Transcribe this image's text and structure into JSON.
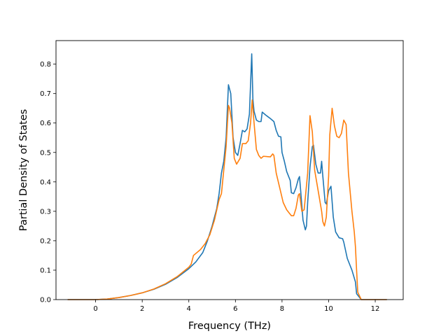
{
  "chart_data": {
    "type": "line",
    "title": "",
    "xlabel": "Frequency (THz)",
    "ylabel": "Partial Density of States",
    "xlim": [
      -1.7,
      13.2
    ],
    "ylim": [
      0.0,
      0.88
    ],
    "xticks": [
      0,
      2,
      4,
      6,
      8,
      10,
      12
    ],
    "yticks": [
      0.0,
      0.1,
      0.2,
      0.3,
      0.4,
      0.5,
      0.6,
      0.7,
      0.8
    ],
    "grid": false,
    "legend": "none",
    "series": [
      {
        "color": "#1f77b4",
        "points": [
          [
            -1.2,
            0.0
          ],
          [
            0.0,
            0.0
          ],
          [
            0.5,
            0.002
          ],
          [
            1.0,
            0.007
          ],
          [
            1.5,
            0.014
          ],
          [
            2.0,
            0.023
          ],
          [
            2.5,
            0.035
          ],
          [
            3.0,
            0.052
          ],
          [
            3.5,
            0.075
          ],
          [
            4.0,
            0.105
          ],
          [
            4.3,
            0.128
          ],
          [
            4.6,
            0.16
          ],
          [
            4.8,
            0.2
          ],
          [
            5.0,
            0.25
          ],
          [
            5.2,
            0.31
          ],
          [
            5.3,
            0.36
          ],
          [
            5.4,
            0.43
          ],
          [
            5.5,
            0.47
          ],
          [
            5.6,
            0.55
          ],
          [
            5.7,
            0.73
          ],
          [
            5.8,
            0.7
          ],
          [
            5.9,
            0.55
          ],
          [
            6.0,
            0.5
          ],
          [
            6.1,
            0.49
          ],
          [
            6.2,
            0.53
          ],
          [
            6.3,
            0.575
          ],
          [
            6.4,
            0.57
          ],
          [
            6.5,
            0.58
          ],
          [
            6.6,
            0.63
          ],
          [
            6.7,
            0.835
          ],
          [
            6.75,
            0.68
          ],
          [
            6.8,
            0.64
          ],
          [
            6.9,
            0.61
          ],
          [
            7.0,
            0.605
          ],
          [
            7.1,
            0.605
          ],
          [
            7.15,
            0.637
          ],
          [
            7.3,
            0.627
          ],
          [
            7.5,
            0.615
          ],
          [
            7.65,
            0.605
          ],
          [
            7.75,
            0.575
          ],
          [
            7.85,
            0.555
          ],
          [
            7.95,
            0.553
          ],
          [
            8.0,
            0.5
          ],
          [
            8.1,
            0.47
          ],
          [
            8.2,
            0.435
          ],
          [
            8.35,
            0.405
          ],
          [
            8.4,
            0.363
          ],
          [
            8.5,
            0.36
          ],
          [
            8.6,
            0.38
          ],
          [
            8.7,
            0.41
          ],
          [
            8.75,
            0.418
          ],
          [
            8.8,
            0.37
          ],
          [
            8.9,
            0.27
          ],
          [
            9.0,
            0.237
          ],
          [
            9.05,
            0.25
          ],
          [
            9.1,
            0.33
          ],
          [
            9.2,
            0.45
          ],
          [
            9.3,
            0.52
          ],
          [
            9.35,
            0.525
          ],
          [
            9.45,
            0.46
          ],
          [
            9.55,
            0.43
          ],
          [
            9.65,
            0.43
          ],
          [
            9.7,
            0.47
          ],
          [
            9.75,
            0.42
          ],
          [
            9.85,
            0.33
          ],
          [
            9.9,
            0.325
          ],
          [
            10.0,
            0.37
          ],
          [
            10.1,
            0.385
          ],
          [
            10.2,
            0.28
          ],
          [
            10.3,
            0.23
          ],
          [
            10.45,
            0.21
          ],
          [
            10.6,
            0.207
          ],
          [
            10.65,
            0.195
          ],
          [
            10.8,
            0.14
          ],
          [
            11.0,
            0.1
          ],
          [
            11.15,
            0.06
          ],
          [
            11.2,
            0.02
          ],
          [
            11.4,
            0.0
          ],
          [
            12.5,
            0.0
          ]
        ]
      },
      {
        "color": "#ff7f0e",
        "points": [
          [
            -1.2,
            0.0
          ],
          [
            0.0,
            0.0
          ],
          [
            0.5,
            0.002
          ],
          [
            1.0,
            0.007
          ],
          [
            1.5,
            0.014
          ],
          [
            2.0,
            0.023
          ],
          [
            2.5,
            0.036
          ],
          [
            3.0,
            0.054
          ],
          [
            3.5,
            0.078
          ],
          [
            4.0,
            0.11
          ],
          [
            4.1,
            0.12
          ],
          [
            4.2,
            0.15
          ],
          [
            4.5,
            0.17
          ],
          [
            4.7,
            0.19
          ],
          [
            4.9,
            0.22
          ],
          [
            5.1,
            0.27
          ],
          [
            5.3,
            0.34
          ],
          [
            5.4,
            0.36
          ],
          [
            5.5,
            0.44
          ],
          [
            5.6,
            0.52
          ],
          [
            5.7,
            0.66
          ],
          [
            5.75,
            0.65
          ],
          [
            5.85,
            0.6
          ],
          [
            5.95,
            0.48
          ],
          [
            6.05,
            0.46
          ],
          [
            6.2,
            0.48
          ],
          [
            6.3,
            0.53
          ],
          [
            6.45,
            0.53
          ],
          [
            6.55,
            0.54
          ],
          [
            6.65,
            0.6
          ],
          [
            6.72,
            0.678
          ],
          [
            6.8,
            0.6
          ],
          [
            6.9,
            0.51
          ],
          [
            7.0,
            0.49
          ],
          [
            7.1,
            0.48
          ],
          [
            7.2,
            0.487
          ],
          [
            7.5,
            0.485
          ],
          [
            7.6,
            0.495
          ],
          [
            7.65,
            0.49
          ],
          [
            7.75,
            0.43
          ],
          [
            7.9,
            0.38
          ],
          [
            8.05,
            0.33
          ],
          [
            8.2,
            0.305
          ],
          [
            8.3,
            0.295
          ],
          [
            8.4,
            0.285
          ],
          [
            8.5,
            0.285
          ],
          [
            8.6,
            0.31
          ],
          [
            8.7,
            0.355
          ],
          [
            8.75,
            0.36
          ],
          [
            8.85,
            0.3
          ],
          [
            8.95,
            0.305
          ],
          [
            9.1,
            0.43
          ],
          [
            9.2,
            0.625
          ],
          [
            9.3,
            0.57
          ],
          [
            9.4,
            0.44
          ],
          [
            9.55,
            0.37
          ],
          [
            9.7,
            0.3
          ],
          [
            9.75,
            0.265
          ],
          [
            9.82,
            0.25
          ],
          [
            9.9,
            0.28
          ],
          [
            10.0,
            0.42
          ],
          [
            10.05,
            0.56
          ],
          [
            10.15,
            0.65
          ],
          [
            10.25,
            0.59
          ],
          [
            10.35,
            0.555
          ],
          [
            10.45,
            0.55
          ],
          [
            10.55,
            0.565
          ],
          [
            10.65,
            0.61
          ],
          [
            10.75,
            0.595
          ],
          [
            10.85,
            0.43
          ],
          [
            11.0,
            0.3
          ],
          [
            11.1,
            0.23
          ],
          [
            11.15,
            0.18
          ],
          [
            11.2,
            0.1
          ],
          [
            11.25,
            0.025
          ],
          [
            11.4,
            0.0
          ],
          [
            12.5,
            0.0
          ]
        ]
      }
    ]
  }
}
